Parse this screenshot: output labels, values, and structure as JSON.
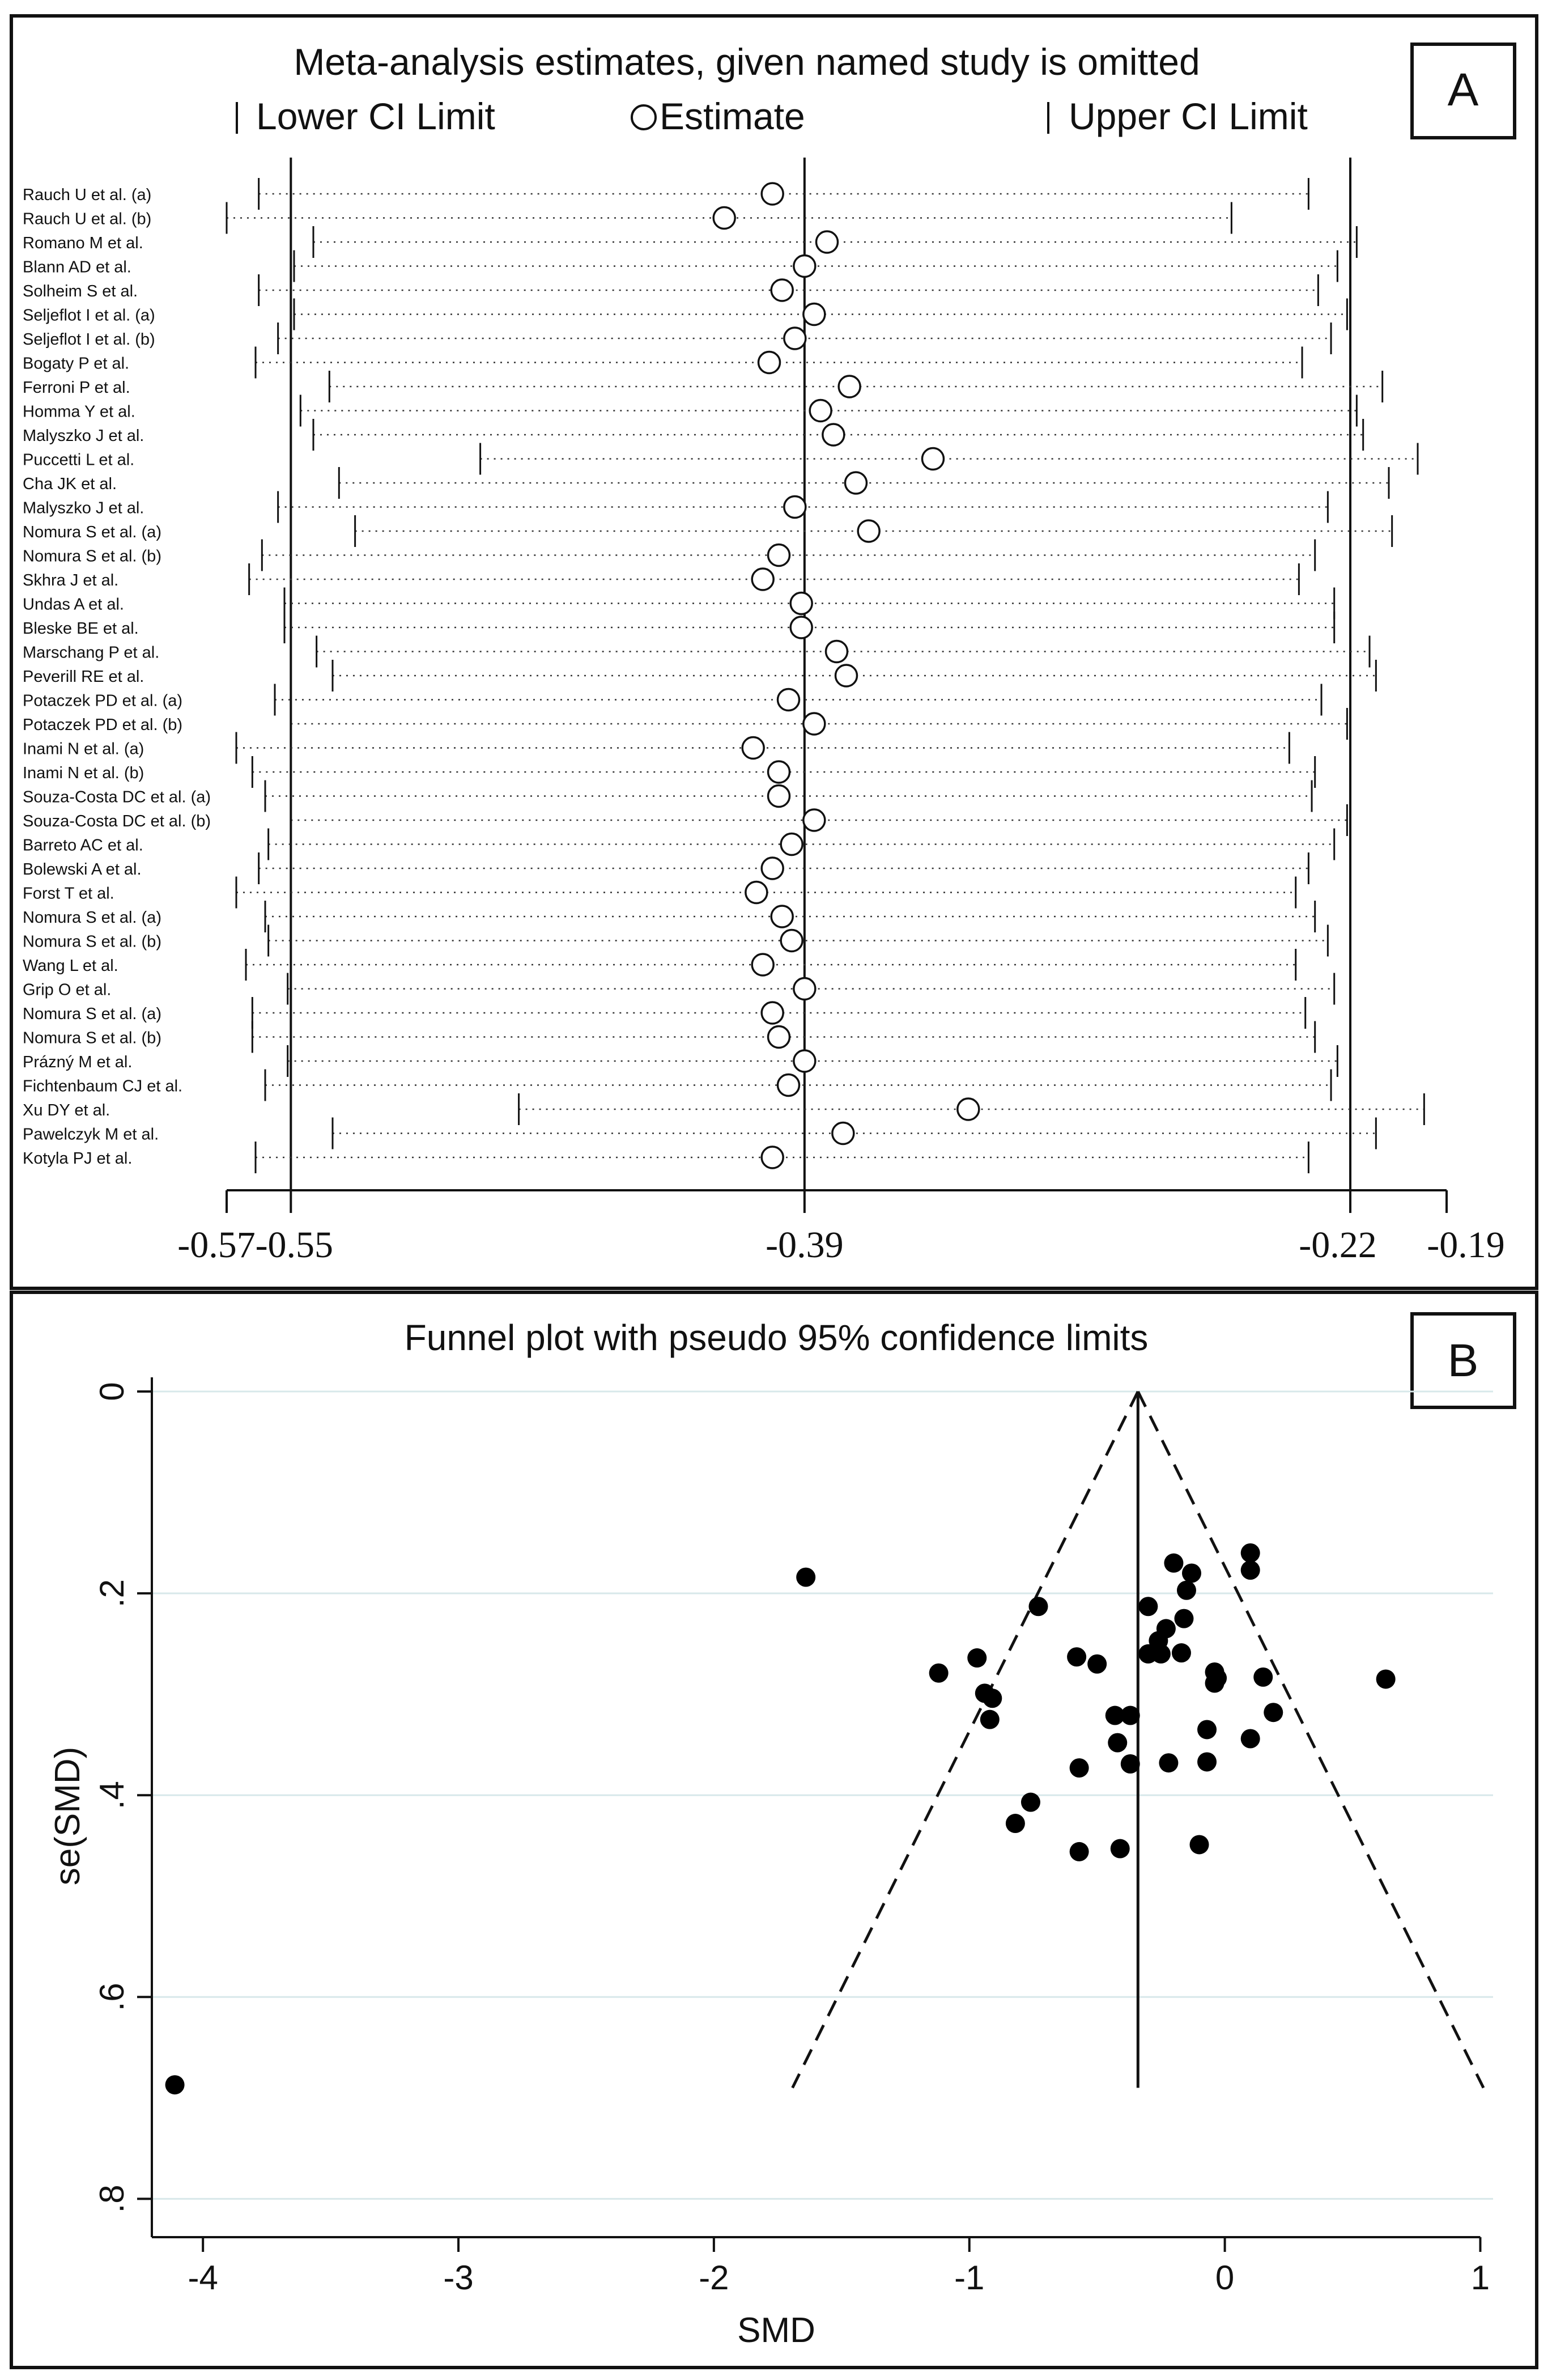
{
  "chart_data": [
    {
      "panel": "A",
      "type": "scatter",
      "title": "Meta-analysis estimates, given named study is omitted",
      "legend": {
        "lower": "Lower CI Limit",
        "estimate": "Estimate",
        "upper": "Upper CI Limit"
      },
      "xticks": [
        -0.57,
        -0.55,
        -0.39,
        -0.22,
        -0.19
      ],
      "xtick_labels": [
        "-0.57",
        "-0.55",
        "-0.39",
        "-0.22",
        "-0.19"
      ],
      "xlim": [
        -0.57,
        -0.19
      ],
      "reference_lines": [
        -0.55,
        -0.39,
        -0.22
      ],
      "studies": [
        {
          "label": "Rauch U et al. (a)",
          "lo": -0.56,
          "est": -0.4,
          "hi": -0.233
        },
        {
          "label": "Rauch U et al. (b)",
          "lo": -0.57,
          "est": -0.415,
          "hi": -0.257
        },
        {
          "label": "Romano M et al.",
          "lo": -0.543,
          "est": -0.383,
          "hi": -0.218
        },
        {
          "label": "Blann AD et al.",
          "lo": -0.549,
          "est": -0.39,
          "hi": -0.224
        },
        {
          "label": "Solheim S et al.",
          "lo": -0.56,
          "est": -0.397,
          "hi": -0.23
        },
        {
          "label": "Seljeflot I et al. (a)",
          "lo": -0.549,
          "est": -0.387,
          "hi": -0.221
        },
        {
          "label": "Seljeflot I et al. (b)",
          "lo": -0.554,
          "est": -0.393,
          "hi": -0.226
        },
        {
          "label": "Bogaty P et al.",
          "lo": -0.561,
          "est": -0.401,
          "hi": -0.235
        },
        {
          "label": "Ferroni P et al.",
          "lo": -0.538,
          "est": -0.376,
          "hi": -0.21
        },
        {
          "label": "Homma Y et al.",
          "lo": -0.547,
          "est": -0.385,
          "hi": -0.218
        },
        {
          "label": "Malyszko J et al.",
          "lo": -0.543,
          "est": -0.381,
          "hi": -0.216
        },
        {
          "label": "Puccetti L et al.",
          "lo": -0.491,
          "est": -0.35,
          "hi": -0.199
        },
        {
          "label": "Cha JK et al.",
          "lo": -0.535,
          "est": -0.374,
          "hi": -0.208
        },
        {
          "label": "Malyszko J et al.",
          "lo": -0.554,
          "est": -0.393,
          "hi": -0.227
        },
        {
          "label": "Nomura S et al. (a)",
          "lo": -0.53,
          "est": -0.37,
          "hi": -0.207
        },
        {
          "label": "Nomura S et al. (b)",
          "lo": -0.559,
          "est": -0.398,
          "hi": -0.231
        },
        {
          "label": "Skhra J et al.",
          "lo": -0.563,
          "est": -0.403,
          "hi": -0.236
        },
        {
          "label": "Undas A et al.",
          "lo": -0.552,
          "est": -0.391,
          "hi": -0.225
        },
        {
          "label": "Bleske BE et al.",
          "lo": -0.552,
          "est": -0.391,
          "hi": -0.225
        },
        {
          "label": "Marschang P et al.",
          "lo": -0.542,
          "est": -0.38,
          "hi": -0.214
        },
        {
          "label": "Peverill RE et al.",
          "lo": -0.537,
          "est": -0.377,
          "hi": -0.212
        },
        {
          "label": "Potaczek PD et al. (a)",
          "lo": -0.555,
          "est": -0.395,
          "hi": -0.229
        },
        {
          "label": "Potaczek PD et al. (b)",
          "lo": -0.55,
          "est": -0.387,
          "hi": -0.221
        },
        {
          "label": "Inami N et al. (a)",
          "lo": -0.567,
          "est": -0.406,
          "hi": -0.239
        },
        {
          "label": "Inami N et al. (b)",
          "lo": -0.562,
          "est": -0.398,
          "hi": -0.231
        },
        {
          "label": "Souza-Costa DC et al. (a)",
          "lo": -0.558,
          "est": -0.398,
          "hi": -0.232
        },
        {
          "label": "Souza-Costa DC et al. (b)",
          "lo": -0.55,
          "est": -0.387,
          "hi": -0.221
        },
        {
          "label": "Barreto AC et al.",
          "lo": -0.557,
          "est": -0.394,
          "hi": -0.225
        },
        {
          "label": "Bolewski A et al.",
          "lo": -0.56,
          "est": -0.4,
          "hi": -0.233
        },
        {
          "label": "Forst T et al.",
          "lo": -0.567,
          "est": -0.405,
          "hi": -0.237
        },
        {
          "label": "Nomura S et al. (a)",
          "lo": -0.558,
          "est": -0.397,
          "hi": -0.231
        },
        {
          "label": "Nomura S et al. (b)",
          "lo": -0.557,
          "est": -0.394,
          "hi": -0.227
        },
        {
          "label": "Wang L et al.",
          "lo": -0.564,
          "est": -0.403,
          "hi": -0.237
        },
        {
          "label": "Grip O et al.",
          "lo": -0.551,
          "est": -0.39,
          "hi": -0.225
        },
        {
          "label": "Nomura S et al. (a)",
          "lo": -0.562,
          "est": -0.4,
          "hi": -0.234
        },
        {
          "label": "Nomura S et al. (b)",
          "lo": -0.562,
          "est": -0.398,
          "hi": -0.231
        },
        {
          "label": "Prázný M et al.",
          "lo": -0.551,
          "est": -0.39,
          "hi": -0.224
        },
        {
          "label": "Fichtenbaum CJ et al.",
          "lo": -0.558,
          "est": -0.395,
          "hi": -0.226
        },
        {
          "label": "Xu DY et al.",
          "lo": -0.479,
          "est": -0.339,
          "hi": -0.197
        },
        {
          "label": "Pawelczyk M et al.",
          "lo": -0.537,
          "est": -0.378,
          "hi": -0.212
        },
        {
          "label": "Kotyla PJ et al.",
          "lo": -0.561,
          "est": -0.4,
          "hi": -0.233
        }
      ]
    },
    {
      "panel": "B",
      "type": "scatter",
      "title": "Funnel plot with pseudo 95% confidence limits",
      "xlabel": "SMD",
      "ylabel": "se(SMD)",
      "xticks": [
        -4,
        -3,
        -2,
        -1,
        0,
        1
      ],
      "xtick_labels": [
        "-4",
        "-3",
        "-2",
        "-1",
        "0",
        "1"
      ],
      "yticks": [
        0,
        0.2,
        0.4,
        0.6,
        0.8
      ],
      "ytick_labels": [
        "0",
        ".2",
        ".4",
        ".6",
        ".8"
      ],
      "xlim": [
        -4.2,
        1.05
      ],
      "ylim": [
        0,
        0.82
      ],
      "y_reversed": true,
      "pooled_smd": -0.34,
      "funnel_max_se": 0.69,
      "points": [
        {
          "x": -4.11,
          "y": 0.687
        },
        {
          "x": -1.64,
          "y": 0.184
        },
        {
          "x": -0.73,
          "y": 0.213
        },
        {
          "x": -1.12,
          "y": 0.279
        },
        {
          "x": -0.97,
          "y": 0.264
        },
        {
          "x": -0.94,
          "y": 0.299
        },
        {
          "x": -0.91,
          "y": 0.304
        },
        {
          "x": -0.92,
          "y": 0.325
        },
        {
          "x": -0.58,
          "y": 0.263
        },
        {
          "x": -0.5,
          "y": 0.27
        },
        {
          "x": -0.43,
          "y": 0.321
        },
        {
          "x": -0.37,
          "y": 0.321
        },
        {
          "x": -0.42,
          "y": 0.348
        },
        {
          "x": -0.57,
          "y": 0.373
        },
        {
          "x": -0.37,
          "y": 0.369
        },
        {
          "x": -0.22,
          "y": 0.368
        },
        {
          "x": -0.76,
          "y": 0.407
        },
        {
          "x": -0.82,
          "y": 0.428
        },
        {
          "x": -0.57,
          "y": 0.456
        },
        {
          "x": -0.41,
          "y": 0.453
        },
        {
          "x": -0.1,
          "y": 0.449
        },
        {
          "x": -0.2,
          "y": 0.17
        },
        {
          "x": -0.13,
          "y": 0.18
        },
        {
          "x": 0.1,
          "y": 0.16
        },
        {
          "x": 0.1,
          "y": 0.177
        },
        {
          "x": -0.3,
          "y": 0.213
        },
        {
          "x": -0.15,
          "y": 0.197
        },
        {
          "x": -0.16,
          "y": 0.225
        },
        {
          "x": -0.23,
          "y": 0.235
        },
        {
          "x": -0.26,
          "y": 0.247
        },
        {
          "x": -0.3,
          "y": 0.26
        },
        {
          "x": -0.25,
          "y": 0.26
        },
        {
          "x": -0.17,
          "y": 0.259
        },
        {
          "x": -0.04,
          "y": 0.278
        },
        {
          "x": -0.03,
          "y": 0.284
        },
        {
          "x": -0.04,
          "y": 0.289
        },
        {
          "x": 0.15,
          "y": 0.283
        },
        {
          "x": 0.63,
          "y": 0.285
        },
        {
          "x": 0.19,
          "y": 0.318
        },
        {
          "x": -0.07,
          "y": 0.335
        },
        {
          "x": 0.1,
          "y": 0.344
        },
        {
          "x": -0.07,
          "y": 0.367
        }
      ]
    }
  ],
  "panel_labels": [
    "A",
    "B"
  ]
}
